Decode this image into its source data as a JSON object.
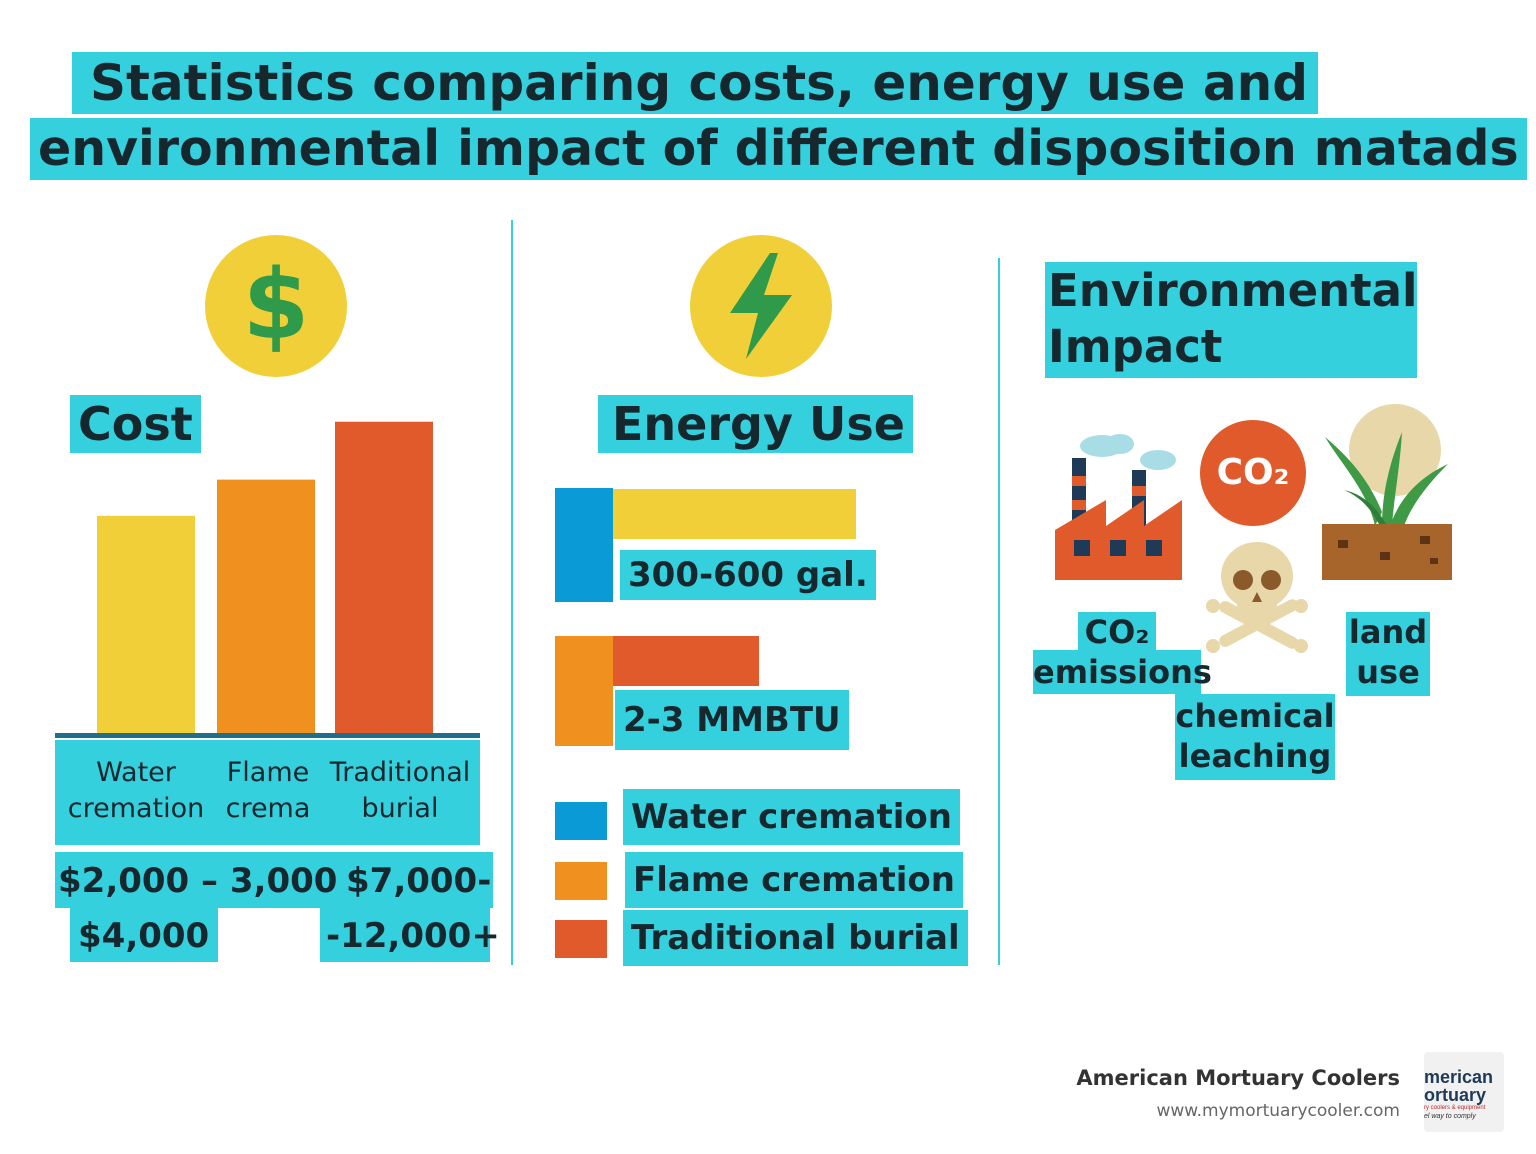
{
  "title": {
    "line1": "Statistics comparing costs, energy use and",
    "line2": "environmental impact of different disposition matads"
  },
  "cost_panel": {
    "heading": "Cost",
    "icon": "dollar-icon",
    "labels": [
      {
        "line1": "Water",
        "line2": "cremation"
      },
      {
        "line1": "Flame",
        "line2": "crema"
      },
      {
        "line1": "Traditional",
        "line2": "burial"
      }
    ],
    "prices": {
      "row1": "$2,000 – 3,000",
      "row2_left": "$4,000",
      "row1_right": "$7,000-",
      "row2_right": "-12,000+"
    }
  },
  "energy_panel": {
    "heading": "Energy Use",
    "icon": "lightning-icon",
    "tag1": "300-600 gal.",
    "tag2": "2-3 MMBTU",
    "legend": [
      {
        "label": "Water cremation",
        "color": "#0a9bd6"
      },
      {
        "label": "Flame cremation",
        "color": "#f0901e"
      },
      {
        "label": "Traditional burial",
        "color": "#e05a2c"
      }
    ]
  },
  "environment_panel": {
    "heading_line1": "Environmental",
    "heading_line2": "Impact",
    "co2_badge": "CO₂",
    "items": [
      {
        "line1": "CO₂",
        "line2": "emissions",
        "icon": "factory-icon"
      },
      {
        "line1": "chemical",
        "line2": "leaching",
        "icon": "skull-crossbones-icon"
      },
      {
        "line1": "land",
        "line2": "use",
        "icon": "plant-soil-icon"
      }
    ]
  },
  "footer": {
    "company": "American Mortuary Coolers",
    "url": "www.mymortuarycooler.com",
    "logo_line1": "merican",
    "logo_line2": "ortuary",
    "logo_small": "ry coolers & equipment",
    "logo_tagline": "el way to comply"
  },
  "colors": {
    "highlight": "#34d0dd",
    "yellow": "#f1cf38",
    "orange": "#f0901e",
    "red": "#e05a2c",
    "blue": "#0a9bd6",
    "green": "#2e9a4a"
  },
  "chart_data": [
    {
      "type": "bar",
      "title": "Cost",
      "categories": [
        "Water cremation",
        "Flame crema",
        "Traditional burial"
      ],
      "values": [
        3000,
        3500,
        4300
      ],
      "colors": [
        "#f1cf38",
        "#f0901e",
        "#e05a2c"
      ],
      "ylim": [
        0,
        4600
      ],
      "value_labels": [
        "$2,000 – 3,000 $4,000",
        "",
        "$7,000- -12,000+"
      ],
      "xlabel": "",
      "ylabel": ""
    },
    {
      "type": "bar",
      "orientation": "horizontal",
      "title": "Energy Use",
      "bars": [
        {
          "value": 300,
          "color": "#f1cf38",
          "label": "300-600 gal."
        },
        {
          "value": 180,
          "color": "#e05a2c",
          "label": "2-3 MMBTU"
        }
      ],
      "xlim": [
        0,
        300
      ],
      "legend": [
        "Water cremation",
        "Flame cremation",
        "Traditional burial"
      ],
      "legend_placement": "bottom"
    }
  ]
}
